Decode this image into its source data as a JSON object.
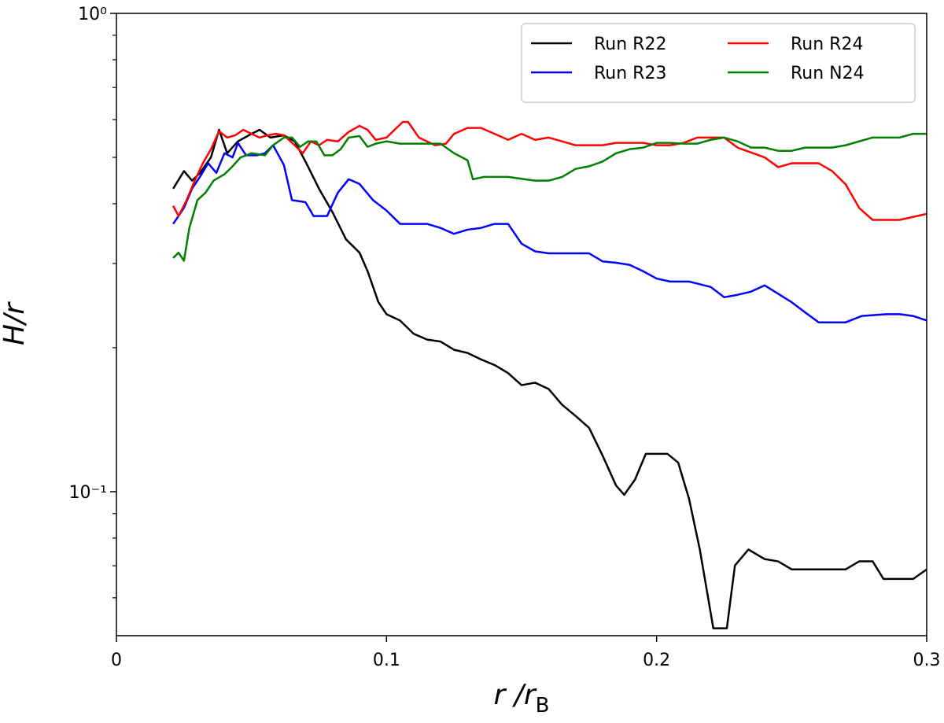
{
  "chart_data": {
    "type": "line",
    "xlabel": {
      "main": "r /r",
      "subscript": "B"
    },
    "ylabel": "H/r",
    "xlim": [
      0,
      0.3
    ],
    "xticks": [
      0,
      0.1,
      0.2,
      0.3
    ],
    "ylim": [
      0.05,
      1
    ],
    "yscale": "log",
    "yticks": [
      {
        "value": 1,
        "label": "10⁰"
      },
      {
        "value": 0.1,
        "label": "10⁻¹"
      }
    ],
    "yminorticks": [
      0.06,
      0.07,
      0.08,
      0.09,
      0.2,
      0.3,
      0.4,
      0.5,
      0.6,
      0.7,
      0.8,
      0.9
    ],
    "legend": "upper right",
    "legend_columns": 2,
    "series": [
      {
        "name": "Run R22",
        "color": "#000000",
        "x": [
          0.021,
          0.025,
          0.028,
          0.031,
          0.035,
          0.038,
          0.041,
          0.045,
          0.05,
          0.053,
          0.057,
          0.062,
          0.066,
          0.07,
          0.075,
          0.08,
          0.085,
          0.09,
          0.093,
          0.097,
          0.1,
          0.105,
          0.11,
          0.115,
          0.12,
          0.125,
          0.13,
          0.135,
          0.14,
          0.145,
          0.15,
          0.155,
          0.16,
          0.165,
          0.17,
          0.175,
          0.18,
          0.185,
          0.188,
          0.192,
          0.196,
          0.204,
          0.208,
          0.212,
          0.216,
          0.221,
          0.226,
          0.229,
          0.234,
          0.24,
          0.245,
          0.25,
          0.26,
          0.27,
          0.275,
          0.28,
          0.284,
          0.29,
          0.295,
          0.3
        ],
        "values": [
          0.43,
          0.468,
          0.447,
          0.464,
          0.5,
          0.571,
          0.51,
          0.54,
          0.56,
          0.571,
          0.55,
          0.556,
          0.54,
          0.49,
          0.43,
          0.384,
          0.337,
          0.316,
          0.289,
          0.249,
          0.235,
          0.228,
          0.214,
          0.208,
          0.206,
          0.198,
          0.195,
          0.189,
          0.184,
          0.177,
          0.167,
          0.169,
          0.164,
          0.152,
          0.144,
          0.136,
          0.119,
          0.103,
          0.0985,
          0.106,
          0.12,
          0.12,
          0.115,
          0.0967,
          0.0757,
          0.0518,
          0.0518,
          0.0701,
          0.0757,
          0.0723,
          0.0715,
          0.0688,
          0.0688,
          0.0688,
          0.0715,
          0.0715,
          0.0657,
          0.0657,
          0.0657,
          0.0688
        ]
      },
      {
        "name": "Run R23",
        "color": "#0000ff",
        "x": [
          0.021,
          0.023,
          0.025,
          0.028,
          0.031,
          0.034,
          0.037,
          0.04,
          0.043,
          0.045,
          0.048,
          0.052,
          0.055,
          0.058,
          0.062,
          0.065,
          0.07,
          0.073,
          0.078,
          0.082,
          0.086,
          0.09,
          0.095,
          0.1,
          0.105,
          0.11,
          0.115,
          0.12,
          0.125,
          0.13,
          0.135,
          0.14,
          0.145,
          0.15,
          0.155,
          0.16,
          0.17,
          0.175,
          0.18,
          0.185,
          0.19,
          0.195,
          0.2,
          0.205,
          0.212,
          0.22,
          0.225,
          0.23,
          0.235,
          0.24,
          0.25,
          0.255,
          0.26,
          0.27,
          0.276,
          0.285,
          0.29,
          0.295,
          0.3
        ],
        "values": [
          0.363,
          0.377,
          0.392,
          0.43,
          0.456,
          0.486,
          0.464,
          0.51,
          0.5,
          0.536,
          0.505,
          0.505,
          0.51,
          0.53,
          0.482,
          0.407,
          0.403,
          0.377,
          0.377,
          0.422,
          0.45,
          0.44,
          0.407,
          0.387,
          0.363,
          0.363,
          0.363,
          0.356,
          0.346,
          0.353,
          0.356,
          0.363,
          0.363,
          0.33,
          0.318,
          0.315,
          0.315,
          0.315,
          0.303,
          0.301,
          0.298,
          0.289,
          0.279,
          0.275,
          0.275,
          0.268,
          0.255,
          0.258,
          0.262,
          0.27,
          0.249,
          0.237,
          0.226,
          0.226,
          0.233,
          0.235,
          0.235,
          0.233,
          0.228
        ]
      },
      {
        "name": "Run R24",
        "color": "#ff0000",
        "x": [
          0.021,
          0.023,
          0.026,
          0.029,
          0.032,
          0.035,
          0.038,
          0.041,
          0.044,
          0.047,
          0.05,
          0.053,
          0.056,
          0.059,
          0.062,
          0.066,
          0.069,
          0.072,
          0.075,
          0.078,
          0.082,
          0.086,
          0.09,
          0.093,
          0.096,
          0.1,
          0.103,
          0.106,
          0.108,
          0.112,
          0.115,
          0.118,
          0.122,
          0.125,
          0.13,
          0.135,
          0.14,
          0.145,
          0.15,
          0.155,
          0.16,
          0.165,
          0.17,
          0.175,
          0.18,
          0.185,
          0.19,
          0.195,
          0.2,
          0.205,
          0.21,
          0.215,
          0.22,
          0.225,
          0.23,
          0.24,
          0.245,
          0.25,
          0.26,
          0.265,
          0.27,
          0.275,
          0.28,
          0.29,
          0.3
        ],
        "values": [
          0.396,
          0.377,
          0.407,
          0.447,
          0.486,
          0.52,
          0.567,
          0.55,
          0.556,
          0.571,
          0.56,
          0.55,
          0.556,
          0.56,
          0.556,
          0.53,
          0.51,
          0.54,
          0.53,
          0.544,
          0.54,
          0.565,
          0.582,
          0.571,
          0.544,
          0.55,
          0.571,
          0.593,
          0.593,
          0.55,
          0.54,
          0.53,
          0.534,
          0.56,
          0.576,
          0.576,
          0.56,
          0.544,
          0.56,
          0.544,
          0.55,
          0.54,
          0.53,
          0.53,
          0.53,
          0.536,
          0.536,
          0.536,
          0.53,
          0.53,
          0.536,
          0.55,
          0.55,
          0.55,
          0.524,
          0.5,
          0.477,
          0.486,
          0.486,
          0.468,
          0.439,
          0.392,
          0.37,
          0.37,
          0.381
        ]
      },
      {
        "name": "Run N24",
        "color": "#008000",
        "x": [
          0.021,
          0.023,
          0.025,
          0.027,
          0.03,
          0.033,
          0.036,
          0.04,
          0.043,
          0.046,
          0.05,
          0.055,
          0.058,
          0.062,
          0.065,
          0.068,
          0.071,
          0.074,
          0.077,
          0.08,
          0.083,
          0.086,
          0.09,
          0.093,
          0.096,
          0.1,
          0.105,
          0.11,
          0.12,
          0.125,
          0.13,
          0.132,
          0.136,
          0.145,
          0.155,
          0.16,
          0.165,
          0.17,
          0.175,
          0.18,
          0.185,
          0.19,
          0.195,
          0.2,
          0.205,
          0.21,
          0.215,
          0.22,
          0.225,
          0.23,
          0.235,
          0.24,
          0.245,
          0.25,
          0.255,
          0.265,
          0.27,
          0.28,
          0.29,
          0.295,
          0.3
        ],
        "values": [
          0.308,
          0.316,
          0.304,
          0.356,
          0.407,
          0.422,
          0.447,
          0.461,
          0.479,
          0.5,
          0.51,
          0.505,
          0.53,
          0.55,
          0.55,
          0.526,
          0.54,
          0.54,
          0.505,
          0.505,
          0.52,
          0.55,
          0.554,
          0.526,
          0.534,
          0.54,
          0.534,
          0.534,
          0.534,
          0.51,
          0.493,
          0.45,
          0.455,
          0.455,
          0.447,
          0.447,
          0.455,
          0.473,
          0.479,
          0.49,
          0.51,
          0.52,
          0.524,
          0.536,
          0.536,
          0.534,
          0.534,
          0.544,
          0.55,
          0.54,
          0.524,
          0.524,
          0.516,
          0.516,
          0.524,
          0.524,
          0.53,
          0.55,
          0.55,
          0.56,
          0.56
        ]
      }
    ]
  }
}
